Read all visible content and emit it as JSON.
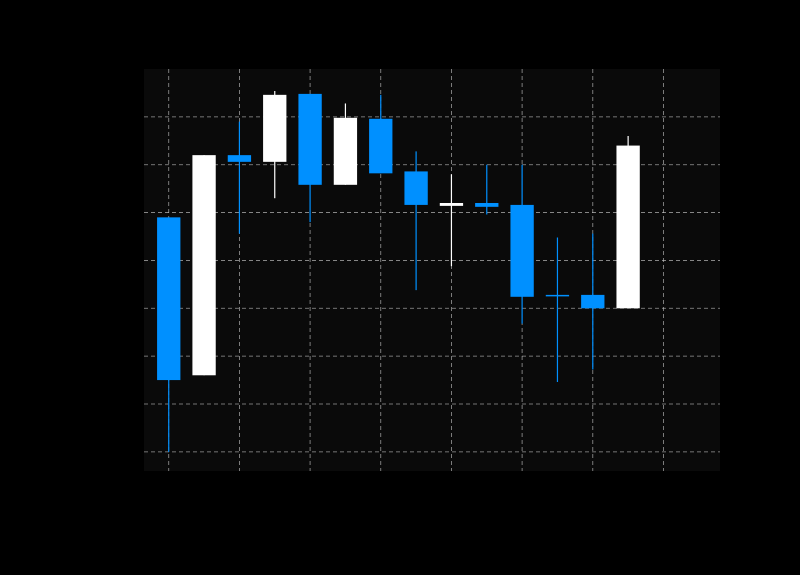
{
  "chart_data": {
    "type": "candlestick",
    "title": "",
    "xlabel": "",
    "ylabel": "",
    "xlim": [
      -0.7,
      15.6
    ],
    "ylim": [
      0,
      42
    ],
    "grid": true,
    "candles": [
      {
        "open": 26.5,
        "close": 9.5,
        "high": 26.5,
        "low": 2.0
      },
      {
        "open": 10.0,
        "close": 33.0,
        "high": 33.0,
        "low": 10.0
      },
      {
        "open": 33.0,
        "close": 32.3,
        "high": 36.5,
        "low": 24.8
      },
      {
        "open": 32.3,
        "close": 39.3,
        "high": 39.7,
        "low": 28.5
      },
      {
        "open": 39.4,
        "close": 29.9,
        "high": 39.4,
        "low": 26.0
      },
      {
        "open": 29.9,
        "close": 36.9,
        "high": 38.4,
        "low": 29.9
      },
      {
        "open": 36.8,
        "close": 31.1,
        "high": 39.3,
        "low": 31.1
      },
      {
        "open": 31.3,
        "close": 27.8,
        "high": 33.4,
        "low": 18.9
      },
      {
        "open": 27.7,
        "close": 28.0,
        "high": 31.0,
        "low": 21.4
      },
      {
        "open": 28.0,
        "close": 27.6,
        "high": 32.0,
        "low": 26.8
      },
      {
        "open": 27.8,
        "close": 18.2,
        "high": 32.0,
        "low": 15.4
      },
      {
        "open": 18.4,
        "close": 18.3,
        "high": 24.4,
        "low": 9.3
      },
      {
        "open": 18.4,
        "close": 17.0,
        "high": 24.8,
        "low": 10.6
      },
      {
        "open": 17.0,
        "close": 34.0,
        "high": 35.0,
        "low": 17.0
      }
    ],
    "colors": {
      "up": "#ffffff",
      "down": "#0090ff",
      "plot_background": "#0a0a0a",
      "page_background": "#000000",
      "grid": "#c8c8c8"
    }
  }
}
